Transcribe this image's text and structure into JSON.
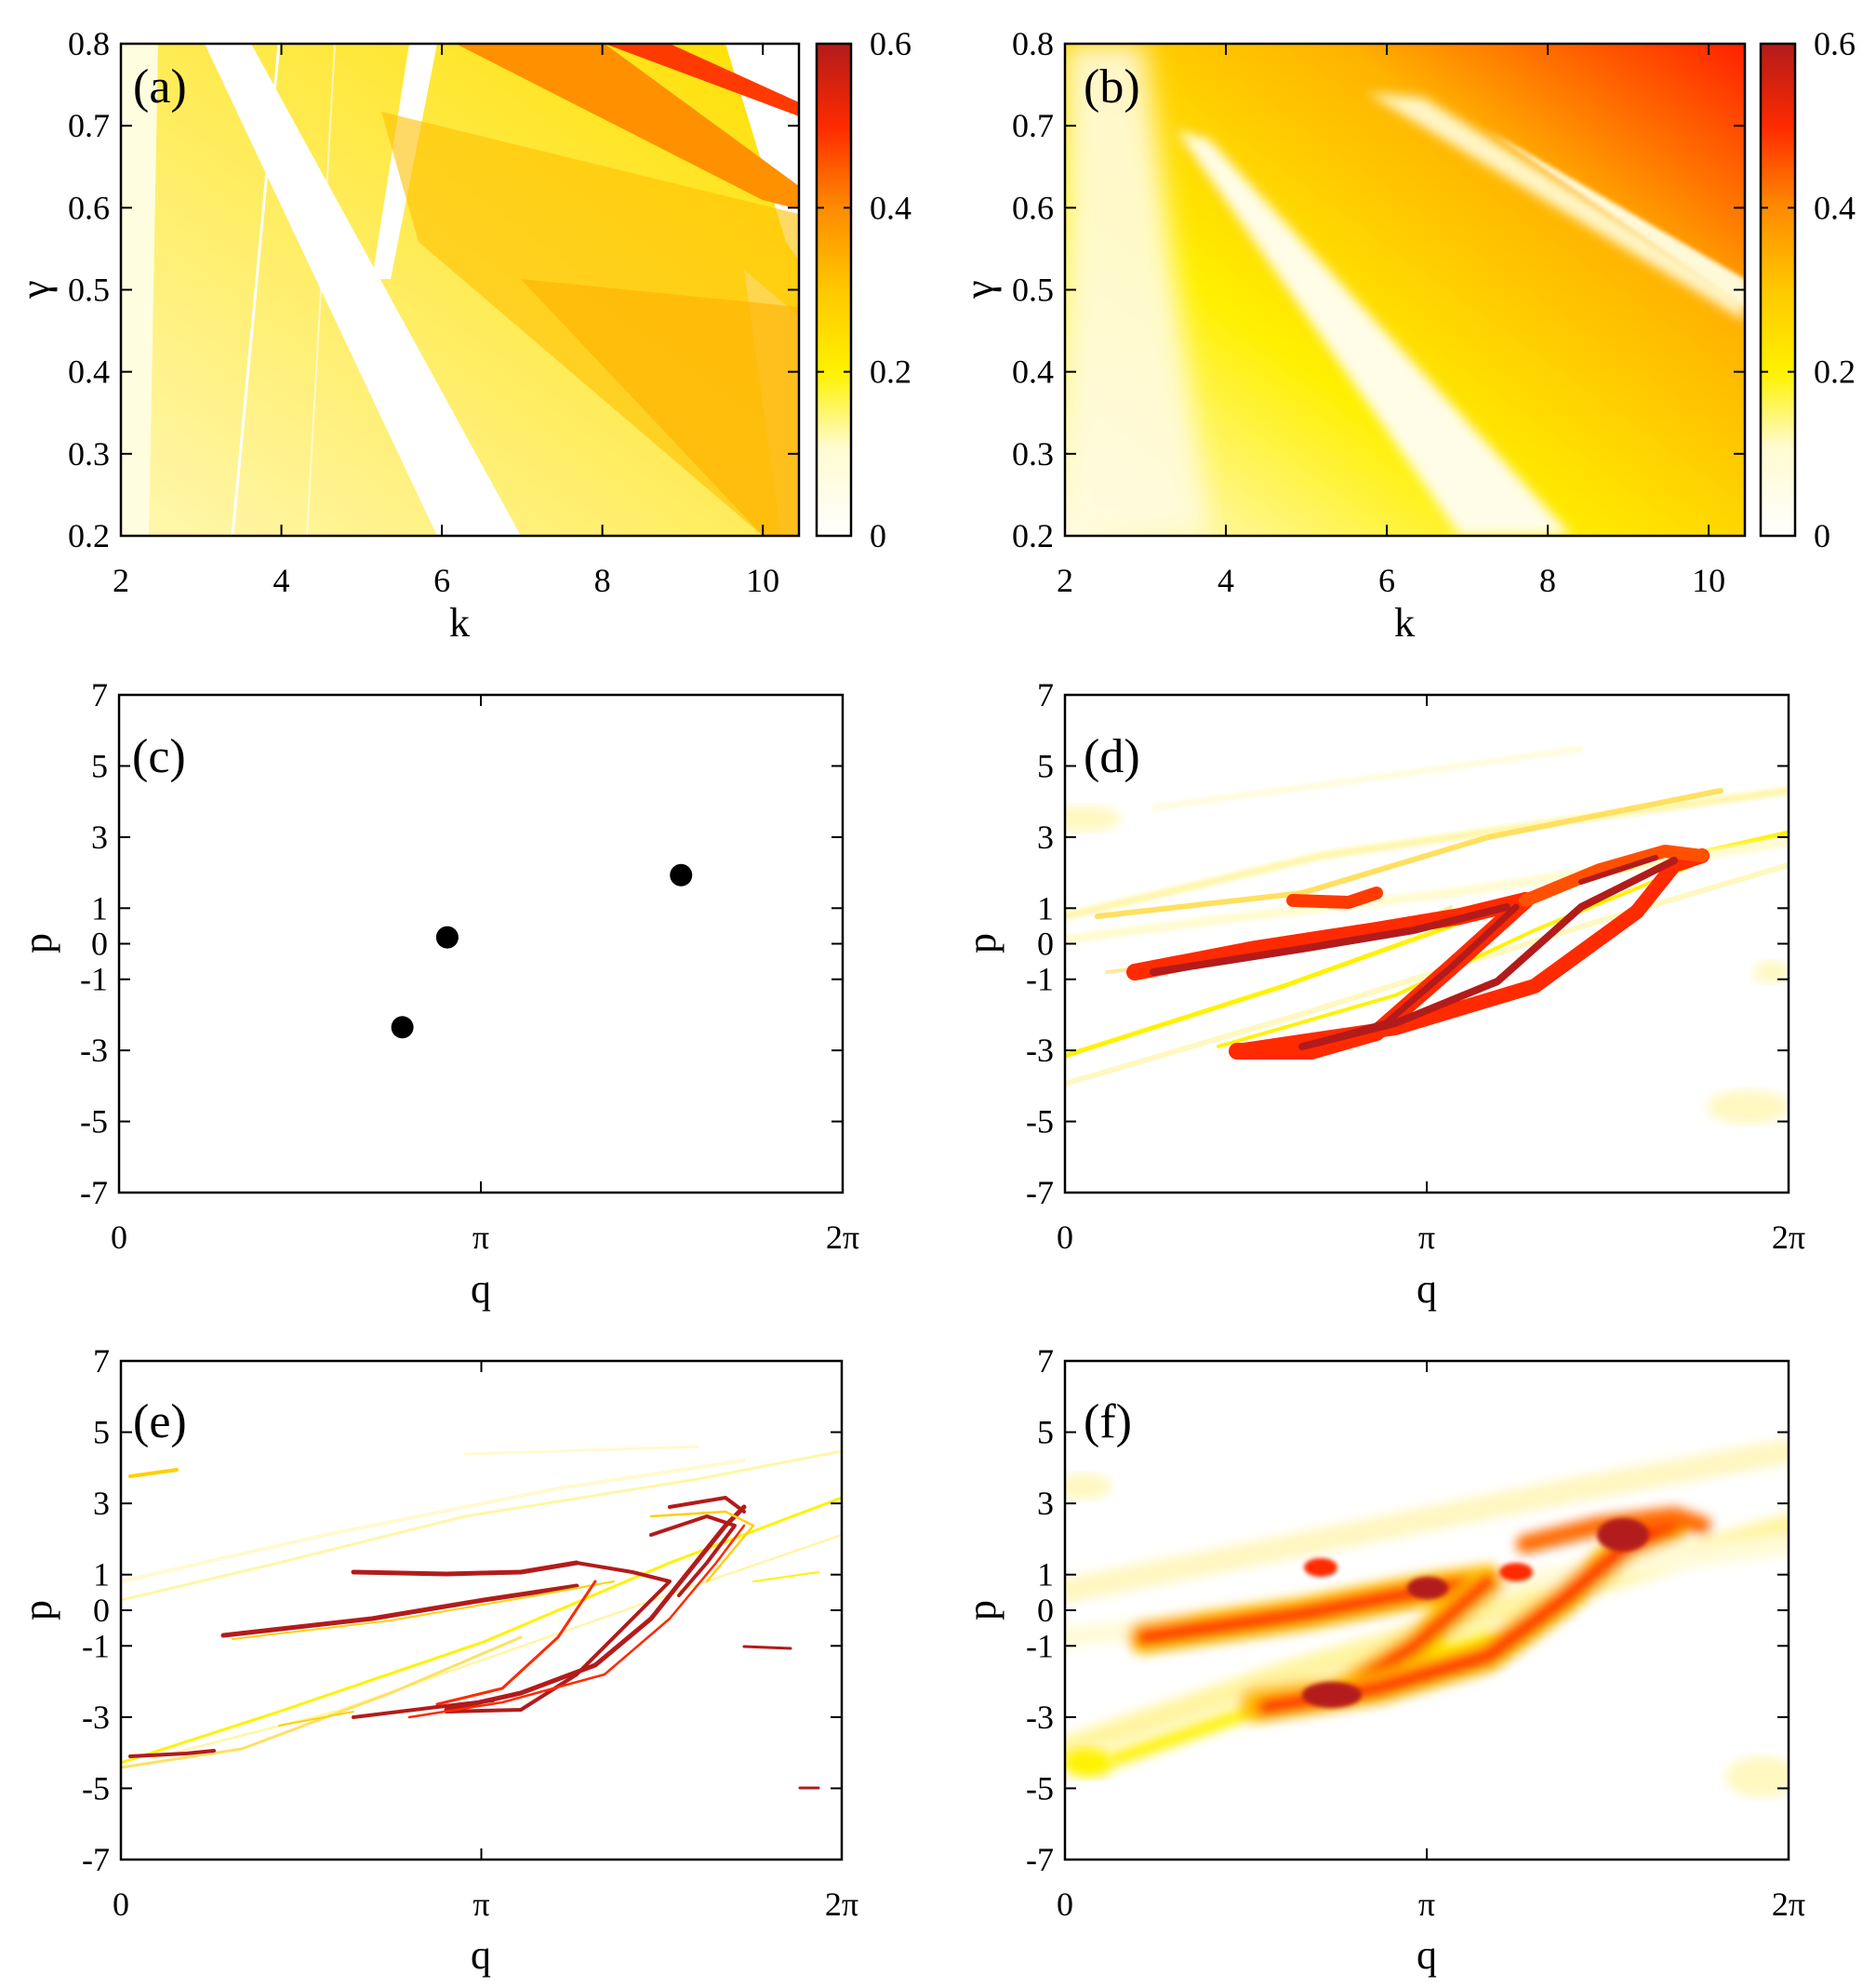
{
  "chart_data": [
    {
      "id": "a",
      "type": "heatmap",
      "panel_label": "(a)",
      "xlabel": "k",
      "ylabel": "γ",
      "xlim": [
        2,
        10.45
      ],
      "ylim": [
        0.2,
        0.8
      ],
      "xticks": [
        2,
        4,
        6,
        8,
        10
      ],
      "xtick_labels": [
        "2",
        "4",
        "6",
        "8",
        "10"
      ],
      "yticks": [
        0.2,
        0.3,
        0.4,
        0.5,
        0.6,
        0.7,
        0.8
      ],
      "ytick_labels": [
        "0.2",
        "0.3",
        "0.4",
        "0.5",
        "0.6",
        "0.7",
        "0.8"
      ],
      "colorbar": {
        "range": [
          0,
          0.6
        ],
        "ticks": [
          0,
          0.2,
          0.4,
          0.6
        ],
        "tick_labels": [
          "0",
          "0.2",
          "0.4",
          "0.6"
        ]
      },
      "description_regions": [
        {
          "name": "wedge-bright-upper",
          "value": 0.35
        },
        {
          "name": "wedge-mid",
          "value": 0.18
        },
        {
          "name": "wedge-low",
          "value": 0.1
        },
        {
          "name": "white-bands",
          "value": 0.0
        }
      ]
    },
    {
      "id": "b",
      "type": "heatmap",
      "panel_label": "(b)",
      "xlabel": "k",
      "ylabel": "γ",
      "xlim": [
        2,
        10.45
      ],
      "ylim": [
        0.2,
        0.8
      ],
      "xticks": [
        2,
        4,
        6,
        8,
        10
      ],
      "xtick_labels": [
        "2",
        "4",
        "6",
        "8",
        "10"
      ],
      "yticks": [
        0.2,
        0.3,
        0.4,
        0.5,
        0.6,
        0.7,
        0.8
      ],
      "ytick_labels": [
        "0.2",
        "0.3",
        "0.4",
        "0.5",
        "0.6",
        "0.7",
        "0.8"
      ],
      "colorbar": {
        "range": [
          0,
          0.6
        ],
        "ticks": [
          0,
          0.2,
          0.4,
          0.6
        ],
        "tick_labels": [
          "0",
          "0.2",
          "0.4",
          "0.6"
        ]
      }
    },
    {
      "id": "c",
      "type": "scatter",
      "panel_label": "(c)",
      "xlabel": "q",
      "ylabel": "p",
      "xlim": [
        0,
        6.2832
      ],
      "ylim": [
        -7,
        7
      ],
      "xticks": [
        0,
        3.1416,
        6.2832
      ],
      "xtick_labels": [
        "0",
        "π",
        "2π"
      ],
      "yticks": [
        7,
        5,
        3,
        1,
        0,
        -1,
        -3,
        -5,
        -7
      ],
      "ytick_labels": [
        "7",
        "5",
        "3",
        "1",
        "0",
        "-1",
        "-3",
        "-5",
        "-7"
      ],
      "points": [
        {
          "q": 2.46,
          "p": -2.35
        },
        {
          "q": 2.85,
          "p": 0.18
        },
        {
          "q": 4.88,
          "p": 1.93
        }
      ]
    },
    {
      "id": "d",
      "type": "heatmap",
      "panel_label": "(d)",
      "xlabel": "q",
      "ylabel": "p",
      "xlim": [
        0,
        6.2832
      ],
      "ylim": [
        -7,
        7
      ],
      "xticks": [
        0,
        3.1416,
        6.2832
      ],
      "xtick_labels": [
        "0",
        "π",
        "2π"
      ],
      "yticks": [
        7,
        5,
        3,
        1,
        0,
        -1,
        -3,
        -5,
        -7
      ],
      "ytick_labels": [
        "7",
        "5",
        "3",
        "1",
        "0",
        "-1",
        "-3",
        "-5",
        "-7"
      ]
    },
    {
      "id": "e",
      "type": "heatmap",
      "panel_label": "(e)",
      "xlabel": "q",
      "ylabel": "p",
      "xlim": [
        0,
        6.2832
      ],
      "ylim": [
        -7,
        7
      ],
      "xticks": [
        0,
        3.1416,
        6.2832
      ],
      "xtick_labels": [
        "0",
        "π",
        "2π"
      ],
      "yticks": [
        7,
        5,
        3,
        1,
        0,
        -1,
        -3,
        -5,
        -7
      ],
      "ytick_labels": [
        "7",
        "5",
        "3",
        "1",
        "0",
        "-1",
        "-3",
        "-5",
        "-7"
      ]
    },
    {
      "id": "f",
      "type": "heatmap",
      "panel_label": "(f)",
      "xlabel": "q",
      "ylabel": "p",
      "xlim": [
        0,
        6.2832
      ],
      "ylim": [
        -7,
        7
      ],
      "xticks": [
        0,
        3.1416,
        6.2832
      ],
      "xtick_labels": [
        "0",
        "π",
        "2π"
      ],
      "yticks": [
        7,
        5,
        3,
        1,
        0,
        -1,
        -3,
        -5,
        -7
      ],
      "ytick_labels": [
        "7",
        "5",
        "3",
        "1",
        "0",
        "-1",
        "-3",
        "-5",
        "-7"
      ]
    }
  ],
  "colors": {
    "white": "#ffffff",
    "pale": "#fffbd0",
    "yellow": "#fff200",
    "yellow_orange": "#ffcf10",
    "orange": "#ff9a00",
    "red": "#ff2a00",
    "dark_red": "#b31b1b",
    "point": "#000000"
  }
}
